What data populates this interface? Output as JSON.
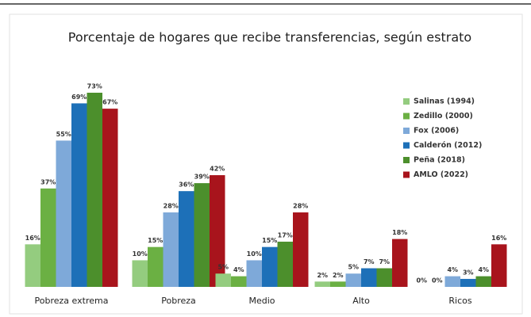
{
  "chart_data": {
    "type": "bar",
    "title": "Porcentaje de hogares que recibe transferencias, según estrato",
    "categories": [
      "Pobreza extrema",
      "Pobreza",
      "Medio",
      "Alto",
      "Ricos"
    ],
    "series": [
      {
        "name": "Salinas (1994)",
        "color": "#94cc7f",
        "values": [
          16,
          10,
          5,
          2,
          0
        ],
        "value_labels": [
          "16%",
          "10%",
          "5%",
          "2%",
          "0%"
        ]
      },
      {
        "name": "Zedillo (2000)",
        "color": "#6bb043",
        "values": [
          37,
          15,
          4,
          2,
          0
        ],
        "value_labels": [
          "37%",
          "15%",
          "4%",
          "2%",
          "0%"
        ]
      },
      {
        "name": "Fox (2006)",
        "color": "#7ea9d9",
        "values": [
          55,
          28,
          10,
          5,
          4
        ],
        "value_labels": [
          "55%",
          "28%",
          "10%",
          "5%",
          "4%"
        ]
      },
      {
        "name": "Calderón (2012)",
        "color": "#1d70b8",
        "values": [
          69,
          36,
          15,
          7,
          3
        ],
        "value_labels": [
          "69%",
          "36%",
          "15%",
          "7%",
          "3%"
        ]
      },
      {
        "name": "Peña (2018)",
        "color": "#4c8f2c",
        "values": [
          73,
          39,
          17,
          7,
          4
        ],
        "value_labels": [
          "73%",
          "39%",
          "17%",
          "7%",
          "4%"
        ]
      },
      {
        "name": "AMLO (2022)",
        "color": "#a8141c",
        "values": [
          67,
          42,
          28,
          18,
          16
        ],
        "value_labels": [
          "67%",
          "42%",
          "28%",
          "18%",
          "16%"
        ]
      }
    ]
  }
}
